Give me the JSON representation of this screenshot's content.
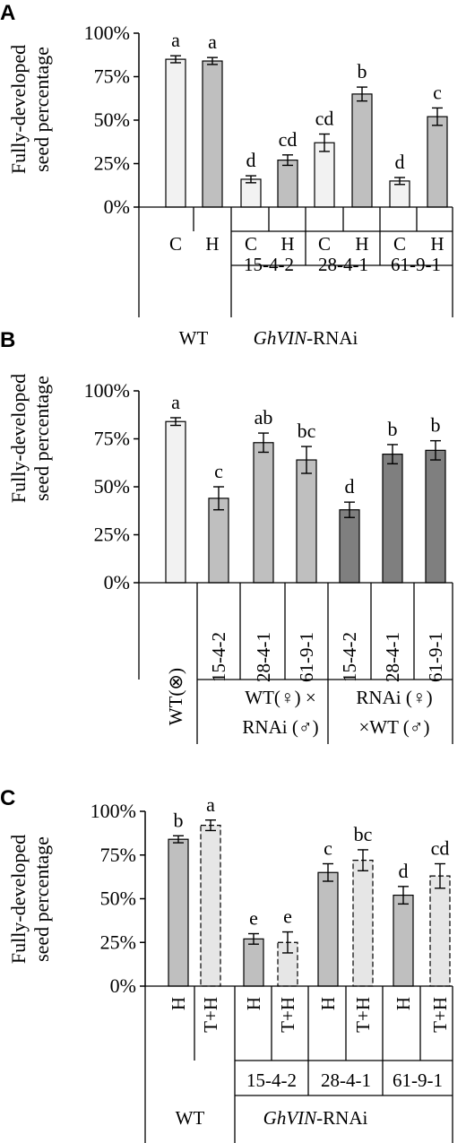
{
  "chart_data": [
    {
      "panel": "A",
      "type": "bar",
      "ylabel": [
        "Fully-developed",
        "seed percentage"
      ],
      "yticks": [
        "0%",
        "25%",
        "50%",
        "75%",
        "100%"
      ],
      "ylim": [
        0,
        100
      ],
      "grid": false,
      "bars": [
        {
          "label": "C",
          "value": 85,
          "error": 2,
          "sig": "a",
          "fill": "light"
        },
        {
          "label": "H",
          "value": 84,
          "error": 2,
          "sig": "a",
          "fill": "mid"
        },
        {
          "label": "C",
          "value": 16,
          "error": 2,
          "sig": "d",
          "fill": "light"
        },
        {
          "label": "H",
          "value": 27,
          "error": 3,
          "sig": "cd",
          "fill": "mid"
        },
        {
          "label": "C",
          "value": 37,
          "error": 5,
          "sig": "cd",
          "fill": "light"
        },
        {
          "label": "H",
          "value": 65,
          "error": 4,
          "sig": "b",
          "fill": "mid"
        },
        {
          "label": "C",
          "value": 15,
          "error": 2,
          "sig": "d",
          "fill": "light"
        },
        {
          "label": "H",
          "value": 52,
          "error": 5,
          "sig": "c",
          "fill": "mid"
        }
      ],
      "lines": [
        "15-4-2",
        "28-4-1",
        "61-9-1"
      ],
      "groups": {
        "wt": "WT",
        "rnai_italic": "GhVIN",
        "rnai_suffix": "-RNAi"
      }
    },
    {
      "panel": "B",
      "type": "bar",
      "ylabel": [
        "Fully-developed",
        "seed percentage"
      ],
      "yticks": [
        "0%",
        "25%",
        "50%",
        "75%",
        "100%"
      ],
      "ylim": [
        0,
        100
      ],
      "grid": false,
      "bars": [
        {
          "label": "WT(⊗)",
          "value": 84,
          "error": 2,
          "sig": "a",
          "fill": "light"
        },
        {
          "label": "15-4-2",
          "value": 44,
          "error": 6,
          "sig": "c",
          "fill": "mid"
        },
        {
          "label": "28-4-1",
          "value": 73,
          "error": 5,
          "sig": "ab",
          "fill": "mid"
        },
        {
          "label": "61-9-1",
          "value": 64,
          "error": 7,
          "sig": "bc",
          "fill": "mid"
        },
        {
          "label": "15-4-2",
          "value": 38,
          "error": 4,
          "sig": "d",
          "fill": "dark"
        },
        {
          "label": "28-4-1",
          "value": 67,
          "error": 5,
          "sig": "b",
          "fill": "dark"
        },
        {
          "label": "61-9-1",
          "value": 69,
          "error": 5,
          "sig": "b",
          "fill": "dark"
        }
      ],
      "groups": {
        "cross1_line1": "WT(♀) ×",
        "cross1_line2": "RNAi (♂)",
        "cross2_line1": "RNAi (♀)",
        "cross2_line2": "×WT (♂)"
      }
    },
    {
      "panel": "C",
      "type": "bar",
      "ylabel": [
        "Fully-developed",
        "seed percentage"
      ],
      "yticks": [
        "0%",
        "25%",
        "50%",
        "75%",
        "100%"
      ],
      "ylim": [
        0,
        100
      ],
      "grid": false,
      "bars": [
        {
          "label": "H",
          "value": 84,
          "error": 2,
          "sig": "b",
          "fill": "mid"
        },
        {
          "label": "T+H",
          "value": 92,
          "error": 3,
          "sig": "a",
          "fill": "dashed"
        },
        {
          "label": "H",
          "value": 27,
          "error": 3,
          "sig": "e",
          "fill": "mid"
        },
        {
          "label": "T+H",
          "value": 25,
          "error": 6,
          "sig": "e",
          "fill": "dashed"
        },
        {
          "label": "H",
          "value": 65,
          "error": 5,
          "sig": "c",
          "fill": "mid"
        },
        {
          "label": "T+H",
          "value": 72,
          "error": 6,
          "sig": "bc",
          "fill": "dashed"
        },
        {
          "label": "H",
          "value": 52,
          "error": 5,
          "sig": "d",
          "fill": "mid"
        },
        {
          "label": "T+H",
          "value": 63,
          "error": 7,
          "sig": "cd",
          "fill": "dashed"
        }
      ],
      "lines": [
        "15-4-2",
        "28-4-1",
        "61-9-1"
      ],
      "groups": {
        "wt": "WT",
        "rnai_italic": "GhVIN",
        "rnai_suffix": "-RNAi"
      }
    }
  ],
  "colors": {
    "light": "#f2f2f2",
    "mid": "#bfbfbf",
    "dark": "#7f7f7f",
    "dashed": "#e6e6e6",
    "axis": "#000000"
  }
}
